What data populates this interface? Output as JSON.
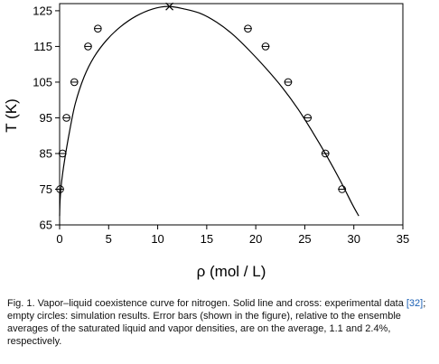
{
  "chart_data": {
    "type": "scatter",
    "title": "",
    "xlabel": "ρ (mol / L)",
    "ylabel": "T (K)",
    "xlim": [
      0,
      35
    ],
    "ylim": [
      65,
      127
    ],
    "xticks": [
      "0",
      "5",
      "10",
      "15",
      "20",
      "25",
      "30",
      "35"
    ],
    "yticks": [
      "65",
      "75",
      "85",
      "95",
      "105",
      "115",
      "125"
    ],
    "grid": false,
    "legend": "none",
    "series": [
      {
        "kind": "line",
        "marker": "none",
        "x": [
          0.0,
          0.05,
          0.2,
          0.5,
          1.0,
          1.6,
          2.5,
          3.5,
          4.8,
          6.2,
          7.8,
          9.5,
          11.1,
          12.7,
          14.4,
          16.0,
          17.6,
          19.3,
          21.0,
          22.7,
          24.3,
          25.8,
          27.2,
          28.6,
          29.8,
          30.5
        ],
        "y": [
          67.5,
          72.0,
          77.0,
          83.0,
          91.0,
          99.0,
          106.5,
          112.0,
          116.8,
          120.5,
          123.5,
          125.5,
          126.2,
          125.5,
          124.2,
          121.8,
          118.5,
          114.0,
          109.0,
          103.5,
          97.5,
          91.0,
          84.5,
          77.5,
          71.0,
          67.5
        ]
      },
      {
        "kind": "scatter",
        "marker": "open-circle",
        "error_bars": true,
        "x": [
          0.05,
          0.3,
          0.7,
          1.5,
          2.9,
          3.9,
          19.2,
          21.0,
          23.3,
          25.3,
          27.1,
          28.8
        ],
        "y": [
          75,
          85,
          95,
          105,
          115,
          120,
          120,
          115,
          105,
          95,
          85,
          75
        ],
        "xerr": [
          0.05,
          0.05,
          0.05,
          0.08,
          0.1,
          0.12,
          0.25,
          0.25,
          0.25,
          0.3,
          0.3,
          0.3
        ]
      },
      {
        "kind": "scatter",
        "marker": "cross",
        "x": [
          11.2
        ],
        "y": [
          126.2
        ]
      }
    ]
  },
  "caption": {
    "before_ref": "Fig. 1. Vapor–liquid coexistence curve for nitrogen. Solid line and cross: experimental data ",
    "ref": "[32]",
    "after_ref": "; empty circles: simulation results. Error bars (shown in the figure), relative to the ensemble averages of the saturated liquid and vapor densities, are on the average, 1.1 and 2.4%, respectively."
  }
}
